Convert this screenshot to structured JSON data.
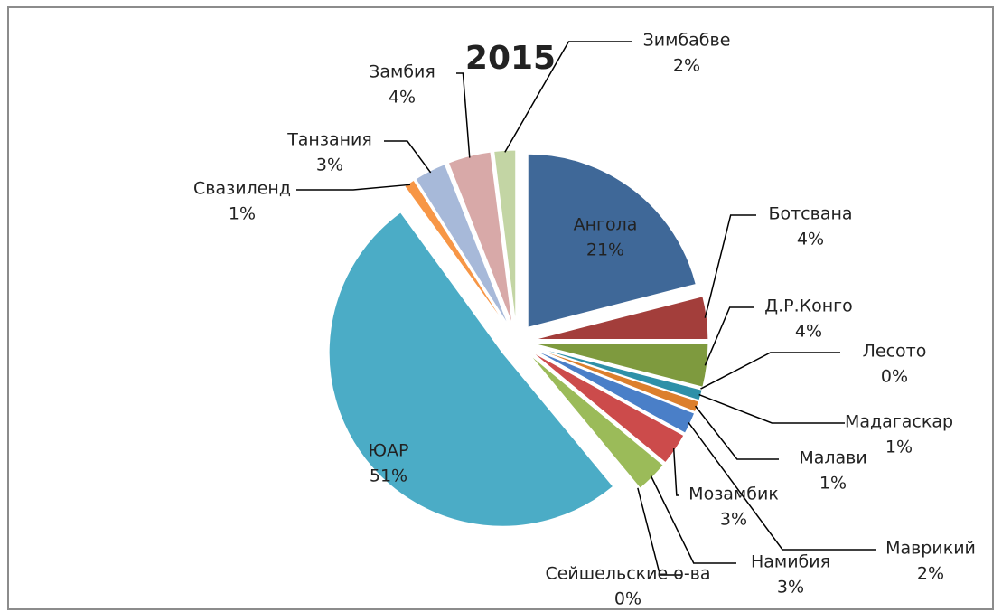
{
  "chart_data": {
    "type": "pie",
    "title": "2015",
    "categories": [
      "Ангола",
      "Ботсвана",
      "Д.Р.Конго",
      "Лесото",
      "Мадагаскар",
      "Малави",
      "Маврикий",
      "Мозамбик",
      "Намибия",
      "Сейшельские о-ва",
      "ЮАР",
      "Свазиленд",
      "Танзания",
      "Замбия",
      "Зимбабве"
    ],
    "values": [
      21,
      4,
      4,
      0,
      1,
      1,
      2,
      3,
      3,
      0,
      51,
      1,
      3,
      4,
      2
    ],
    "value_labels": [
      "21%",
      "4%",
      "4%",
      "0%",
      "1%",
      "1%",
      "2%",
      "3%",
      "3%",
      "0%",
      "51%",
      "1%",
      "3%",
      "4%",
      "2%"
    ],
    "colors": [
      "#3f6898",
      "#a33e3b",
      "#7e9a3e",
      "#6a4f8c",
      "#2e90a8",
      "#dc7f2c",
      "#4a7fc8",
      "#cc4b4b",
      "#9bbb59",
      "#8064a2",
      "#4bacc6",
      "#f79646",
      "#a7b9d9",
      "#d8a9a8",
      "#c3d5a4"
    ]
  }
}
